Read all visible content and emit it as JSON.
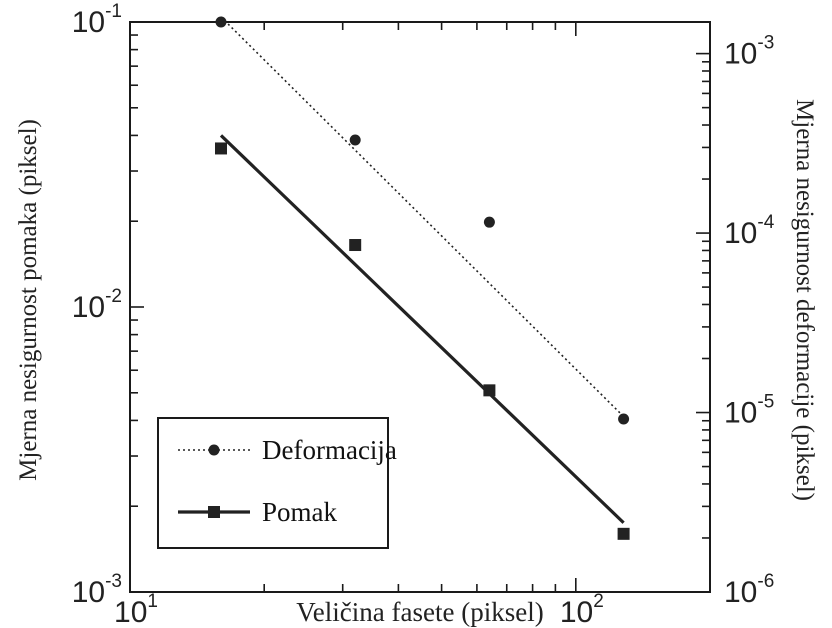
{
  "chart_data": {
    "type": "line",
    "title": "",
    "xlabel": "Veličina fasete (piksel)",
    "ylabel_left": "Mjerna nesigurnost pomaka (piksel)",
    "ylabel_right": "Mjerna nesigurnost deformacije (piksel)",
    "x_scale": "log",
    "y_scale": "log",
    "xlim": [
      10,
      200
    ],
    "ylim_left": [
      0.001,
      0.1
    ],
    "ylim_right": [
      1e-06,
      0.0015
    ],
    "x_ticks": [
      {
        "value": 10,
        "base": "10",
        "exp": "1"
      },
      {
        "value": 100,
        "base": "10",
        "exp": "2"
      }
    ],
    "y_ticks_left": [
      {
        "value": 0.001,
        "base": "10",
        "exp": "-3"
      },
      {
        "value": 0.01,
        "base": "10",
        "exp": "-2"
      },
      {
        "value": 0.1,
        "base": "10",
        "exp": "-1"
      }
    ],
    "y_ticks_right": [
      {
        "value": 1e-06,
        "base": "10",
        "exp": "-6"
      },
      {
        "value": 1e-05,
        "base": "10",
        "exp": "-5"
      },
      {
        "value": 0.0001,
        "base": "10",
        "exp": "-4"
      },
      {
        "value": 0.001,
        "base": "10",
        "exp": "-3"
      }
    ],
    "legend_placement": "bottom-left",
    "series": [
      {
        "name": "Deformacija",
        "axis": "right",
        "marker": "circle",
        "line_style": "dotted",
        "color": "#222222",
        "x": [
          16,
          32,
          64,
          128
        ],
        "y": [
          0.0015,
          0.00033,
          0.000115,
          9.2e-06
        ],
        "fit": {
          "x": [
            16,
            128
          ],
          "y": [
            0.0016,
            9.5e-06
          ]
        }
      },
      {
        "name": "Pomak",
        "axis": "left",
        "marker": "square",
        "line_style": "solid",
        "color": "#222222",
        "x": [
          16,
          32,
          64,
          128
        ],
        "y": [
          0.036,
          0.0165,
          0.0051,
          0.0016
        ],
        "fit": {
          "x": [
            16,
            128
          ],
          "y": [
            0.04,
            0.00175
          ]
        }
      }
    ]
  }
}
